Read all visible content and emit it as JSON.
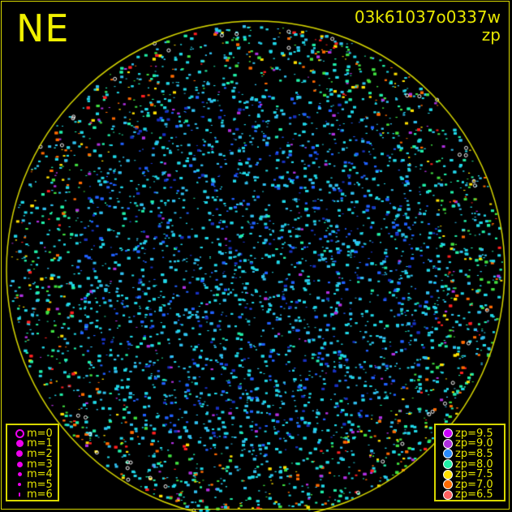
{
  "header": {
    "direction": "NE",
    "frame_id": "03k61037o0337w",
    "quantity": "zp"
  },
  "magnitude_legend": [
    {
      "label": "m=0",
      "marker": "open-circle"
    },
    {
      "label": "m=1",
      "marker": "filled-circle"
    },
    {
      "label": "m=2",
      "marker": "filled-circle"
    },
    {
      "label": "m=3",
      "marker": "filled-circle"
    },
    {
      "label": "m=4",
      "marker": "filled-circle"
    },
    {
      "label": "m=5",
      "marker": "filled-circle"
    },
    {
      "label": "m=6",
      "marker": "filled-circle"
    }
  ],
  "zp_legend": [
    {
      "label": "zp=9.5",
      "color": "#cc00ff"
    },
    {
      "label": "zp=9.0",
      "color": "#b030e0"
    },
    {
      "label": "zp=8.5",
      "color": "#2a8cff"
    },
    {
      "label": "zp=8.0",
      "color": "#20f0a8"
    },
    {
      "label": "zp=7.5",
      "color": "#ffe000"
    },
    {
      "label": "zp=7.0",
      "color": "#ff6a00"
    },
    {
      "label": "zp=6.5",
      "color": "#ff6060"
    }
  ],
  "colors": {
    "frame": "#d8d800",
    "horizon": "#d8d800",
    "background": "#000000"
  }
}
